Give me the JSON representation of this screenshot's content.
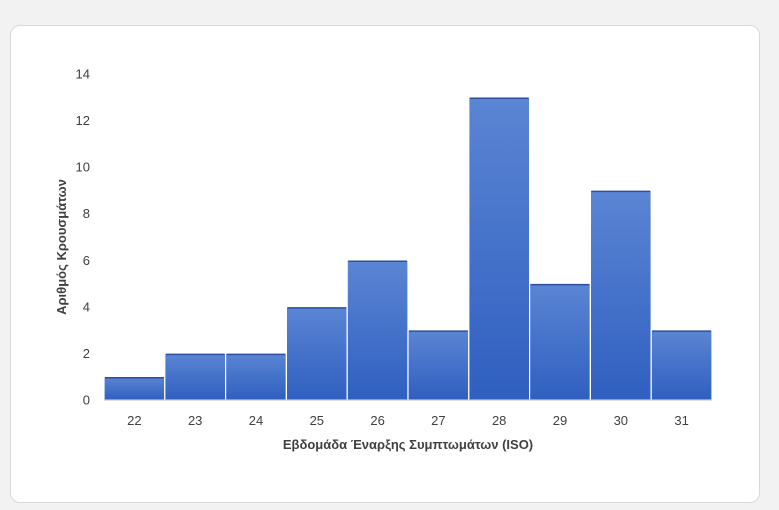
{
  "chart_data": {
    "type": "bar",
    "title": "",
    "xlabel": "Εβδομάδα Έναρξης Συμπτωμάτων (ISO)",
    "ylabel": "Αριθμός Κρουσμάτων",
    "categories": [
      "22",
      "23",
      "24",
      "25",
      "26",
      "27",
      "28",
      "29",
      "30",
      "31"
    ],
    "values": [
      1,
      2,
      2,
      4,
      6,
      3,
      13,
      5,
      9,
      3
    ],
    "ylim": [
      0,
      14
    ],
    "yticks": [
      0,
      2,
      4,
      6,
      8,
      10,
      12,
      14
    ],
    "grid": false,
    "legend": "none",
    "bar_color_top": "#5b85d4",
    "bar_color_bottom": "#2f5fc0",
    "bar_edge_color": "#ffffff"
  }
}
